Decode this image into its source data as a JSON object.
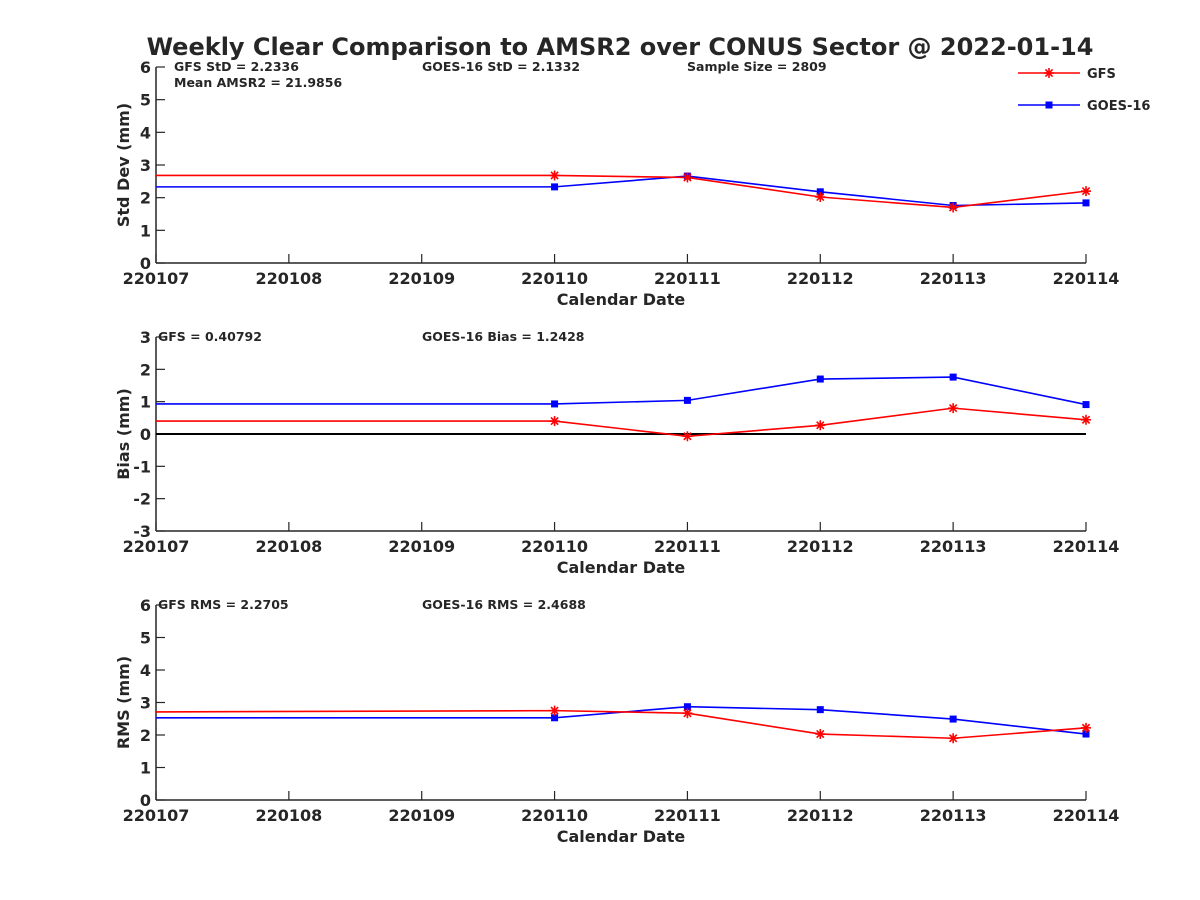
{
  "title": "Weekly Clear Comparison to AMSR2 over CONUS Sector @ 2022-01-14",
  "legend": {
    "placement": "top-right",
    "entries": [
      {
        "label": "GFS",
        "color": "#ff0000",
        "marker": "asterisk"
      },
      {
        "label": "GOES-16",
        "color": "#0000ff",
        "marker": "square"
      }
    ]
  },
  "colors": {
    "gfs": "#ff0000",
    "goes": "#0000ff",
    "axis": "#262626",
    "zero_line": "#000000"
  },
  "chart_data": [
    {
      "type": "line",
      "ylabel": "Std Dev (mm)",
      "xlabel": "Calendar Date",
      "ylim": [
        0,
        6
      ],
      "yticks": [
        "0",
        "1",
        "2",
        "3",
        "4",
        "5",
        "6"
      ],
      "x_ticks": [
        "220107",
        "220108",
        "220109",
        "220110",
        "220111",
        "220112",
        "220113",
        "220114"
      ],
      "grid": false,
      "zero_line": false,
      "annotations": {
        "left": "GFS StD = 2.2336",
        "left2": "Mean AMSR2 = 21.9856",
        "middle": "GOES-16 StD = 2.1332",
        "right": "Sample Size = 2809"
      },
      "series": [
        {
          "name": "GFS",
          "x": [
            "220107",
            "220110",
            "220111",
            "220112",
            "220113",
            "220114"
          ],
          "values": [
            2.68,
            2.68,
            2.62,
            2.02,
            1.7,
            2.2
          ]
        },
        {
          "name": "GOES-16",
          "x": [
            "220107",
            "220110",
            "220111",
            "220112",
            "220113",
            "220114"
          ],
          "values": [
            2.33,
            2.33,
            2.66,
            2.18,
            1.76,
            1.84
          ]
        }
      ]
    },
    {
      "type": "line",
      "ylabel": "Bias (mm)",
      "xlabel": "Calendar Date",
      "ylim": [
        -3,
        3
      ],
      "yticks": [
        "-3",
        "-2",
        "-1",
        "0",
        "1",
        "2",
        "3"
      ],
      "x_ticks": [
        "220107",
        "220108",
        "220109",
        "220110",
        "220111",
        "220112",
        "220113",
        "220114"
      ],
      "grid": false,
      "zero_line": true,
      "annotations": {
        "left": "GFS = 0.40792",
        "middle": "GOES-16 Bias  = 1.2428"
      },
      "series": [
        {
          "name": "GFS",
          "x": [
            "220107",
            "220110",
            "220111",
            "220112",
            "220113",
            "220114"
          ],
          "values": [
            0.4,
            0.4,
            -0.07,
            0.27,
            0.8,
            0.44
          ]
        },
        {
          "name": "GOES-16",
          "x": [
            "220107",
            "220110",
            "220111",
            "220112",
            "220113",
            "220114"
          ],
          "values": [
            0.93,
            0.93,
            1.04,
            1.7,
            1.76,
            0.91
          ]
        }
      ]
    },
    {
      "type": "line",
      "ylabel": "RMS (mm)",
      "xlabel": "Calendar Date",
      "ylim": [
        0,
        6
      ],
      "yticks": [
        "0",
        "1",
        "2",
        "3",
        "4",
        "5",
        "6"
      ],
      "x_ticks": [
        "220107",
        "220108",
        "220109",
        "220110",
        "220111",
        "220112",
        "220113",
        "220114"
      ],
      "grid": false,
      "zero_line": false,
      "annotations": {
        "left": "GFS RMS = 2.2705",
        "middle": "GOES-16 RMS = 2.4688"
      },
      "series": [
        {
          "name": "GFS",
          "x": [
            "220107",
            "220110",
            "220111",
            "220112",
            "220113",
            "220114"
          ],
          "values": [
            2.71,
            2.75,
            2.67,
            2.03,
            1.9,
            2.22
          ]
        },
        {
          "name": "GOES-16",
          "x": [
            "220107",
            "220110",
            "220111",
            "220112",
            "220113",
            "220114"
          ],
          "values": [
            2.53,
            2.53,
            2.87,
            2.78,
            2.49,
            2.03
          ]
        }
      ]
    }
  ]
}
